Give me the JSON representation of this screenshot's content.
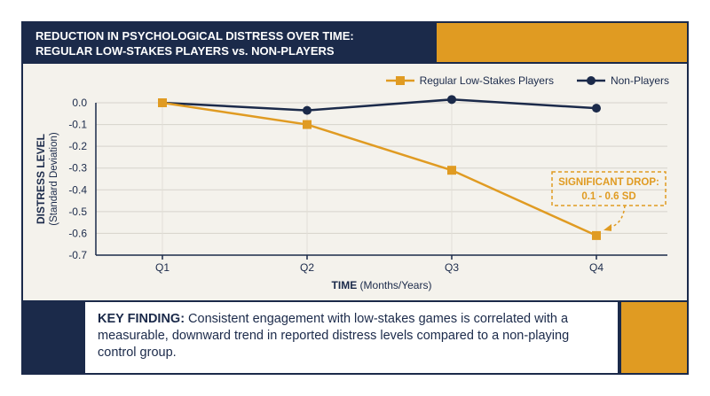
{
  "header": {
    "title_line1": "REDUCTION IN PSYCHOLOGICAL DISTRESS OVER TIME:",
    "title_line2": "REGULAR LOW-STAKES PLAYERS vs. NON-PLAYERS"
  },
  "colors": {
    "navy": "#1b2a4a",
    "gold": "#e09b22",
    "background": "#f4f2ec"
  },
  "chart_data": {
    "type": "line",
    "categories": [
      "Q1",
      "Q2",
      "Q3",
      "Q4"
    ],
    "series": [
      {
        "name": "Regular Low-Stakes Players",
        "values": [
          0.0,
          -0.1,
          -0.31,
          -0.61
        ],
        "color": "#e09b22",
        "marker": "square"
      },
      {
        "name": "Non-Players",
        "values": [
          0.0,
          -0.035,
          0.015,
          -0.025
        ],
        "color": "#1b2a4a",
        "marker": "circle"
      }
    ],
    "ylim": [
      -0.7,
      0.0
    ],
    "yticks": [
      "0.0",
      "-0.1",
      "-0.2",
      "-0.3",
      "-0.4",
      "-0.5",
      "-0.6",
      "-0.7"
    ],
    "ylabel": "DISTRESS LEVEL",
    "ylabel_sub": "(Standard Deviation)",
    "xlabel": "TIME",
    "xlabel_sub": "(Months/Years)",
    "legend_position": "top-right",
    "grid": "horizontal",
    "annotation": {
      "line1": "SIGNIFICANT DROP:",
      "line2": "0.1 - 0.6 SD",
      "target_category": "Q4"
    }
  },
  "footer": {
    "key_label": "KEY FINDING:",
    "text": " Consistent engagement with low-stakes games is correlated with a measurable, downward trend in reported distress levels compared to a non-playing control group."
  }
}
